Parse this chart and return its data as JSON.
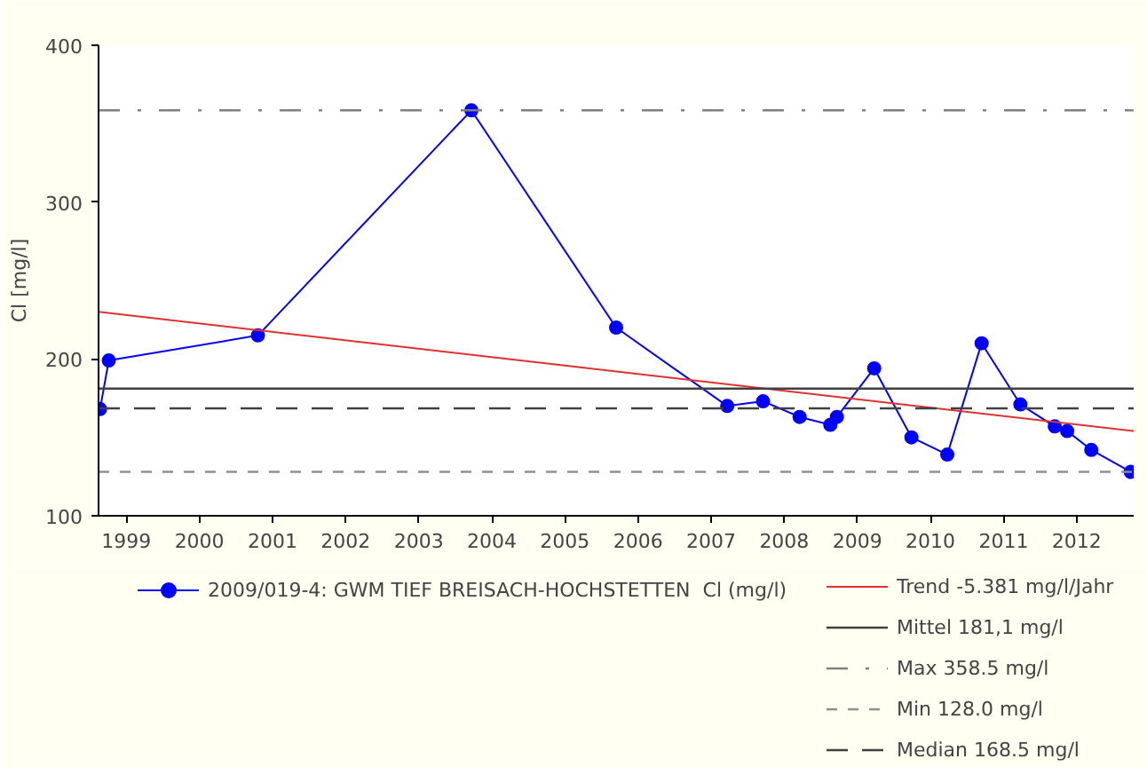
{
  "chart_data": {
    "type": "line",
    "ylabel": "Cl [mg/l]",
    "xlim": [
      1998.62,
      2012.78
    ],
    "xticks": [
      1999,
      2000,
      2001,
      2002,
      2003,
      2004,
      2005,
      2006,
      2007,
      2008,
      2009,
      2010,
      2011,
      2012
    ],
    "ylim": [
      100,
      400
    ],
    "yticks": [
      100,
      200,
      300,
      400
    ],
    "grid": false,
    "legend": "bottom",
    "marker": "circle",
    "line_style": "solid",
    "series": [
      {
        "name": "2009/019-4: GWM TIEF BREISACH-HOCHSTETTEN  Cl (mg/l)",
        "color": "#0000ff",
        "x": [
          1998.64,
          1998.76,
          2000.8,
          2003.72,
          2005.7,
          2007.22,
          2007.71,
          2008.21,
          2008.63,
          2008.72,
          2009.23,
          2009.74,
          2010.23,
          2010.7,
          2011.23,
          2011.7,
          2011.87,
          2012.2,
          2012.74
        ],
        "values": [
          168,
          199,
          215,
          358.5,
          220,
          170,
          173,
          163,
          158,
          163,
          194,
          150,
          139,
          210,
          171,
          157,
          154,
          142,
          128
        ]
      },
      {
        "name": "Trend -5.381 mg/l/Jahr",
        "type": "line",
        "marker": "none",
        "color": "#e03030",
        "x": [
          1998.62,
          2012.78
        ],
        "values": [
          230,
          154
        ]
      }
    ],
    "ref_lines": [
      {
        "axis": "y",
        "value": 181.1,
        "label": "Mittel 181,1 mg/l",
        "color": "#404040",
        "line_style": "solid"
      },
      {
        "axis": "y",
        "value": 358.5,
        "label": "Max 358.5 mg/l",
        "color": "#808080",
        "line_style": "dashdot"
      },
      {
        "axis": "y",
        "value": 128.0,
        "label": "Min 128.0 mg/l",
        "color": "#909090",
        "line_style": "dashed"
      },
      {
        "axis": "y",
        "value": 168.5,
        "label": "Median 168.5 mg/l",
        "color": "#404040",
        "line_style": "longdash"
      }
    ]
  }
}
